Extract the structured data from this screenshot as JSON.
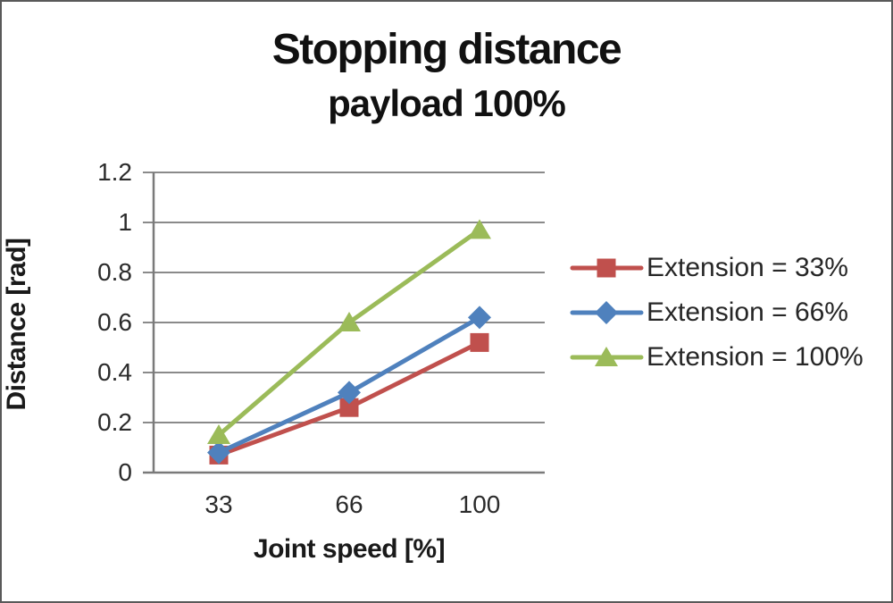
{
  "header": {
    "title": "Stopping distance",
    "subtitle": "payload 100%"
  },
  "chart_data": {
    "type": "line",
    "title": "Stopping distance",
    "subtitle": "payload 100%",
    "categories": [
      "33",
      "66",
      "100"
    ],
    "xlabel": "Joint speed [%]",
    "ylabel": "Distance [rad]",
    "ylim": [
      0,
      1.2
    ],
    "yticks": [
      0,
      0.2,
      0.4,
      0.6,
      0.8,
      1,
      1.2
    ],
    "ytick_labels": [
      "0",
      "0.2",
      "0.4",
      "0.6",
      "0.8",
      "1",
      "1.2"
    ],
    "grid": true,
    "legend_position": "right",
    "series": [
      {
        "name": "Extension = 33%",
        "marker": "square",
        "color": "#C0504D",
        "values": [
          0.07,
          0.26,
          0.52
        ]
      },
      {
        "name": "Extension = 66%",
        "marker": "diamond",
        "color": "#4F81BD",
        "values": [
          0.08,
          0.32,
          0.62
        ]
      },
      {
        "name": "Extension = 100%",
        "marker": "triangle",
        "color": "#9BBB59",
        "values": [
          0.15,
          0.6,
          0.97
        ]
      }
    ],
    "colors": {
      "gridline": "#8A8A8A",
      "axis": "#7A7A7A",
      "text": "#262626",
      "title": "#111111"
    }
  }
}
